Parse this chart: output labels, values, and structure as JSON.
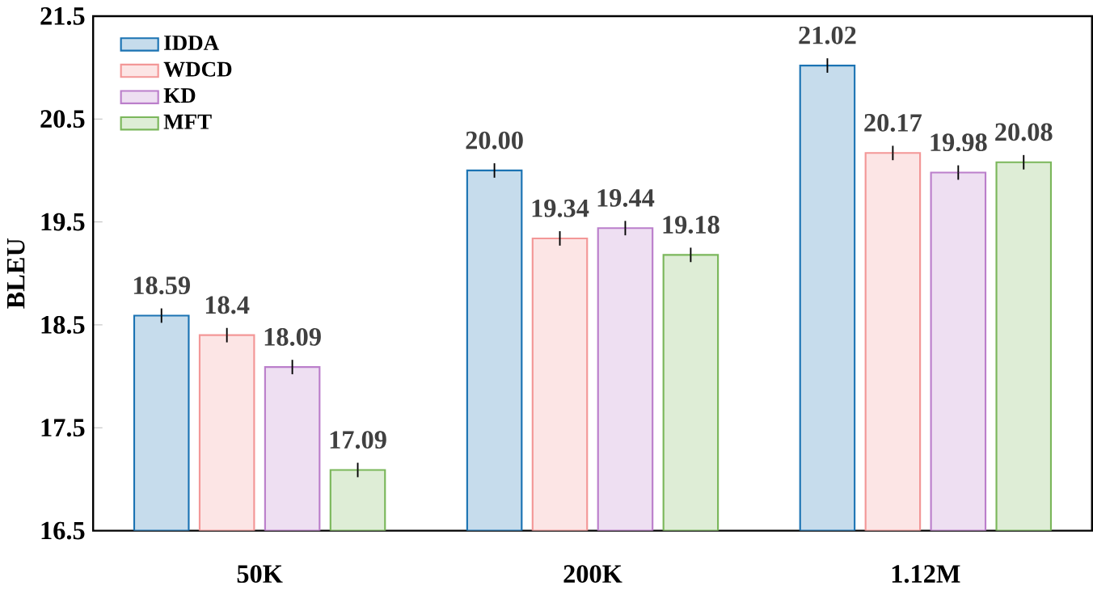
{
  "chart_data": {
    "type": "bar",
    "ylabel": "BLEU",
    "categories": [
      "50K",
      "200K",
      "1.12M"
    ],
    "series": [
      {
        "name": "IDDA",
        "color": "#c6dcec",
        "values": [
          18.59,
          20.0,
          21.02
        ],
        "value_labels": [
          "18.59",
          "20.00",
          "21.02"
        ],
        "errors": [
          0.07,
          0.07,
          0.07
        ]
      },
      {
        "name": "WDCD",
        "color": "#fce5e5",
        "values": [
          18.4,
          19.34,
          20.17
        ],
        "value_labels": [
          "18.4",
          "19.34",
          "20.17"
        ],
        "errors": [
          0.07,
          0.07,
          0.07
        ]
      },
      {
        "name": "KD",
        "color": "#eedff2",
        "values": [
          18.09,
          19.44,
          19.98
        ],
        "value_labels": [
          "18.09",
          "19.44",
          "19.98"
        ],
        "errors": [
          0.07,
          0.07,
          0.07
        ]
      },
      {
        "name": "MFT",
        "color": "#deedd6",
        "values": [
          17.09,
          19.18,
          20.08
        ],
        "value_labels": [
          "17.09",
          "19.18",
          "20.08"
        ],
        "errors": [
          0.07,
          0.07,
          0.07
        ]
      }
    ],
    "ylim": [
      16.5,
      21.5
    ],
    "yticks": [
      16.5,
      17.5,
      18.5,
      19.5,
      20.5,
      21.5
    ],
    "legend": "top left",
    "grid": false
  }
}
